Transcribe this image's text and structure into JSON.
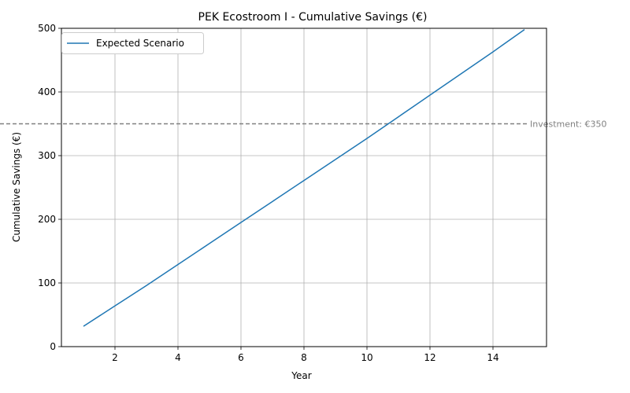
{
  "chart_data": {
    "type": "line",
    "title": "PEK Ecostroom I - Cumulative Savings (€)",
    "xlabel": "Year",
    "ylabel": "Cumulative Savings (€)",
    "xlim": [
      0.3,
      15.7
    ],
    "ylim": [
      0,
      500
    ],
    "xticks": [
      2,
      4,
      6,
      8,
      10,
      12,
      14
    ],
    "yticks": [
      0,
      100,
      200,
      300,
      400,
      500
    ],
    "grid": true,
    "legend_position": "top-left",
    "series": [
      {
        "name": "Expected Scenario",
        "color": "#1f77b4",
        "x": [
          1,
          2,
          3,
          4,
          5,
          6,
          7,
          8,
          9,
          10,
          11,
          12,
          13,
          14,
          15
        ],
        "values": [
          32,
          64,
          96,
          129,
          162,
          195,
          228,
          261,
          294,
          327,
          361,
          395,
          429,
          463,
          498
        ]
      }
    ],
    "reference_line": {
      "value": 350,
      "label": "Investment: €350",
      "color": "#808080"
    }
  }
}
